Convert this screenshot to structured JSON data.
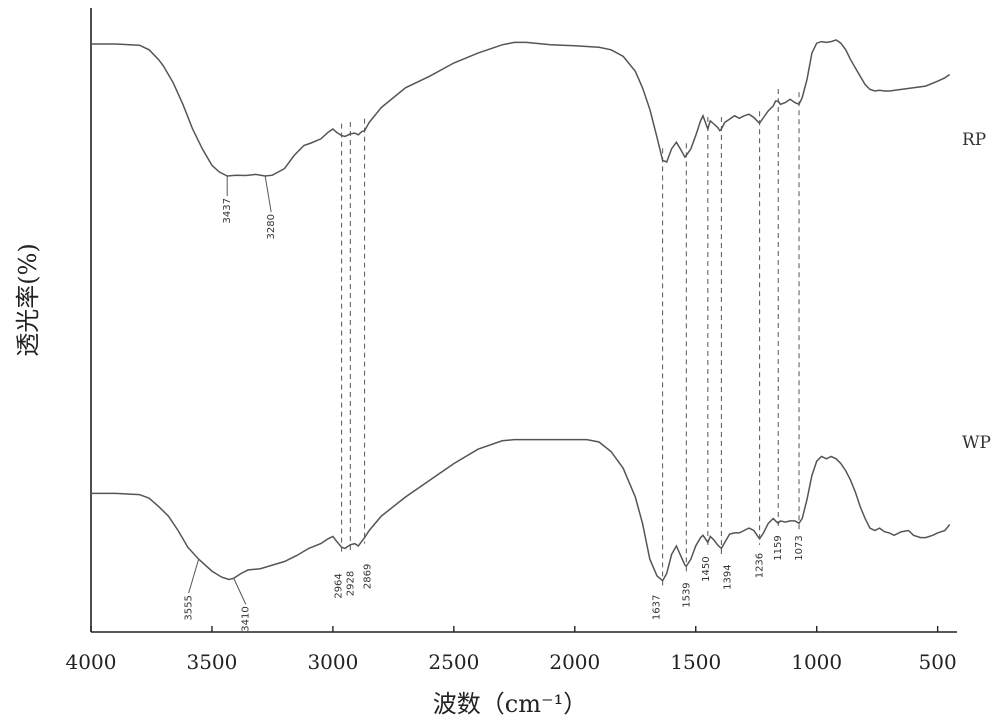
{
  "chart_data": {
    "type": "line",
    "xlabel": "波数（cm⁻¹）",
    "ylabel": "透光率(%)",
    "xlim": [
      4000,
      420
    ],
    "x_reversed": true,
    "x_ticks": [
      4000,
      3500,
      3000,
      2500,
      2000,
      1500,
      1000,
      500
    ],
    "ylim": [
      0,
      100
    ],
    "y_ticks_shown": false,
    "grid": false,
    "series": [
      {
        "name": "RP",
        "x": [
          4000,
          3900,
          3800,
          3760,
          3720,
          3700,
          3660,
          3620,
          3580,
          3540,
          3500,
          3470,
          3437,
          3400,
          3360,
          3320,
          3280,
          3250,
          3200,
          3160,
          3120,
          3090,
          3050,
          3020,
          3000,
          2985,
          2964,
          2950,
          2928,
          2910,
          2895,
          2880,
          2869,
          2850,
          2800,
          2700,
          2600,
          2500,
          2400,
          2300,
          2250,
          2200,
          2100,
          2000,
          1950,
          1900,
          1850,
          1800,
          1750,
          1720,
          1690,
          1660,
          1637,
          1620,
          1600,
          1580,
          1560,
          1545,
          1539,
          1520,
          1500,
          1480,
          1470,
          1460,
          1450,
          1440,
          1425,
          1410,
          1400,
          1394,
          1380,
          1360,
          1340,
          1320,
          1300,
          1280,
          1260,
          1240,
          1236,
          1220,
          1200,
          1180,
          1170,
          1159,
          1150,
          1130,
          1110,
          1090,
          1073,
          1060,
          1040,
          1020,
          1000,
          980,
          960,
          940,
          920,
          900,
          880,
          860,
          840,
          820,
          800,
          780,
          760,
          740,
          720,
          700,
          650,
          600,
          550,
          500,
          470,
          450
        ],
        "y": [
          91.5,
          91.5,
          90.8,
          88,
          82,
          78,
          68,
          55,
          40,
          28,
          18,
          14,
          11.5,
          12,
          11.8,
          12.5,
          11.5,
          12,
          16,
          24,
          30,
          31.5,
          34,
          38,
          40,
          38,
          36,
          35.5,
          37,
          37.5,
          36.5,
          38.5,
          39,
          44,
          53,
          65,
          72,
          80,
          86,
          91,
          92.5,
          92.5,
          91,
          90.5,
          90,
          89.5,
          88,
          84,
          75,
          65,
          52,
          35,
          21,
          20,
          28,
          32,
          27,
          23,
          24,
          28,
          36,
          45,
          48,
          44,
          40,
          45,
          43,
          41,
          39,
          40,
          44,
          46,
          48,
          46.5,
          48,
          49,
          47,
          44,
          43.5,
          47,
          51,
          54,
          57,
          57,
          55,
          56,
          58,
          56,
          55,
          59,
          70,
          86,
          92,
          93,
          92.5,
          93,
          94,
          92,
          88,
          82,
          77,
          72,
          67,
          64,
          63,
          63.5,
          63,
          63,
          64,
          65,
          66,
          69,
          71,
          73
        ]
      },
      {
        "name": "WP",
        "x": [
          4000,
          3900,
          3800,
          3760,
          3720,
          3680,
          3640,
          3600,
          3555,
          3500,
          3460,
          3430,
          3410,
          3380,
          3350,
          3300,
          3250,
          3200,
          3150,
          3100,
          3050,
          3020,
          3000,
          2985,
          2964,
          2950,
          2928,
          2910,
          2895,
          2880,
          2869,
          2850,
          2800,
          2700,
          2600,
          2500,
          2400,
          2300,
          2250,
          2200,
          2100,
          2000,
          1950,
          1900,
          1850,
          1800,
          1750,
          1720,
          1690,
          1660,
          1637,
          1620,
          1600,
          1580,
          1560,
          1545,
          1539,
          1520,
          1500,
          1480,
          1470,
          1460,
          1450,
          1440,
          1425,
          1410,
          1400,
          1394,
          1380,
          1360,
          1340,
          1320,
          1300,
          1280,
          1260,
          1240,
          1236,
          1220,
          1200,
          1180,
          1170,
          1159,
          1150,
          1130,
          1110,
          1090,
          1073,
          1060,
          1040,
          1020,
          1000,
          980,
          960,
          940,
          920,
          900,
          880,
          860,
          840,
          820,
          800,
          780,
          760,
          740,
          720,
          700,
          680,
          650,
          620,
          600,
          570,
          550,
          520,
          500,
          470,
          450
        ],
        "y": [
          42.5,
          42.5,
          42,
          40.5,
          37,
          33,
          27,
          20,
          15,
          10,
          7.5,
          6.5,
          7,
          9,
          10.5,
          11,
          12.5,
          14,
          16.5,
          19.5,
          21.5,
          23.5,
          24.5,
          22.5,
          20,
          19.5,
          21,
          21.5,
          20.5,
          22.5,
          24,
          27,
          33,
          41,
          48,
          55,
          61,
          64.5,
          65,
          65,
          65,
          65,
          65,
          64,
          60,
          53,
          41,
          30,
          15,
          8,
          6,
          9,
          17,
          20.5,
          16,
          12.5,
          12,
          15,
          20.5,
          24,
          25,
          23.5,
          22,
          24.5,
          23,
          21,
          20,
          19.5,
          22,
          25.5,
          26,
          26,
          27,
          28,
          27,
          24,
          23.5,
          26,
          30,
          32,
          31,
          30,
          31,
          30.5,
          31,
          31,
          30,
          32,
          40,
          50,
          56,
          58,
          57,
          58,
          57,
          55,
          52,
          48,
          43,
          37,
          32,
          28,
          27,
          28,
          26.5,
          26,
          25,
          26.5,
          27,
          25,
          24,
          24,
          25,
          26,
          27,
          29.5
        ]
      }
    ],
    "peak_labels": [
      {
        "value": 3437,
        "label": "3437"
      },
      {
        "value": 3280,
        "label": "3280"
      },
      {
        "value": 3555,
        "label": "3555"
      },
      {
        "value": 3410,
        "label": "3410"
      },
      {
        "value": 2964,
        "label": "2964"
      },
      {
        "value": 2928,
        "label": "2928"
      },
      {
        "value": 2869,
        "label": "2869"
      },
      {
        "value": 1637,
        "label": "1637"
      },
      {
        "value": 1539,
        "label": "1539"
      },
      {
        "value": 1450,
        "label": "1450"
      },
      {
        "value": 1394,
        "label": "1394"
      },
      {
        "value": 1236,
        "label": "1236"
      },
      {
        "value": 1159,
        "label": "1159"
      },
      {
        "value": 1073,
        "label": "1073"
      }
    ],
    "dashed_guides": [
      2964,
      2928,
      2869,
      1637,
      1539,
      1450,
      1394,
      1236,
      1159,
      1073
    ],
    "line_color": "#555555"
  }
}
